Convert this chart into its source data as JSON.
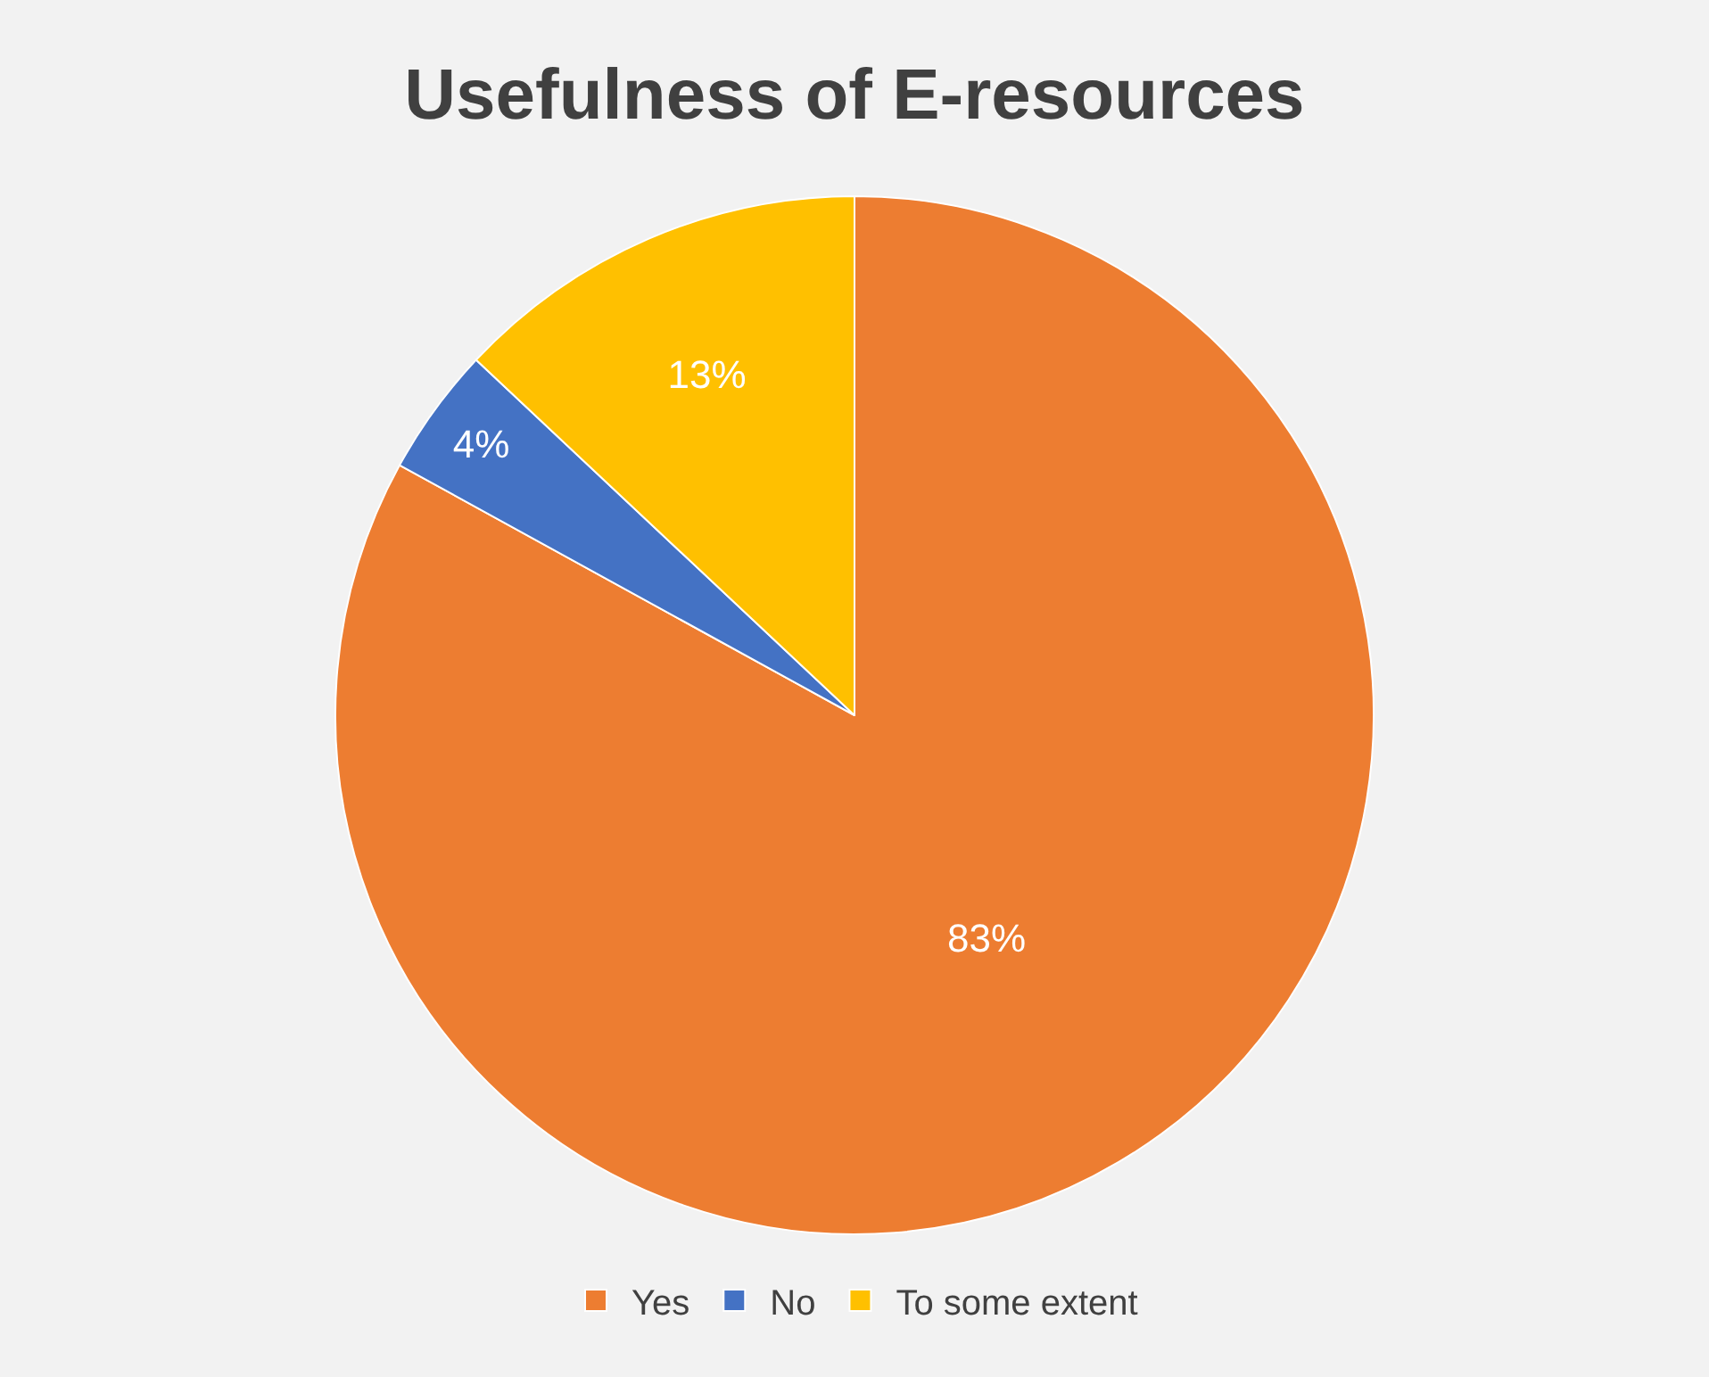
{
  "chart_data": {
    "type": "pie",
    "title": "Usefulness of E-resources",
    "categories": [
      "Yes",
      "No",
      "To some extent"
    ],
    "values": [
      83,
      4,
      13
    ],
    "colors": [
      "#ed7d31",
      "#4472c4",
      "#ffc000"
    ],
    "value_labels": [
      "83%",
      "4%",
      "13%"
    ],
    "legend": "bottom"
  }
}
